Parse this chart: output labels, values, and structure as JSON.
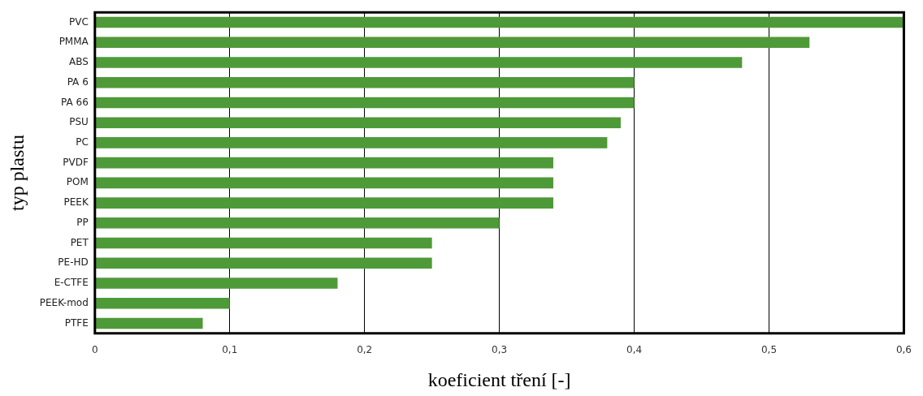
{
  "chart_data": {
    "type": "bar",
    "orientation": "horizontal",
    "xlabel": "koeficient tření [-]",
    "ylabel": "typ plastu",
    "categories": [
      "PVC",
      "PMMA",
      "ABS",
      "PA 6",
      "PA 66",
      "PSU",
      "PC",
      "PVDF",
      "POM",
      "PEEK",
      "PP",
      "PET",
      "PE-HD",
      "E-CTFE",
      "PEEK-mod",
      "PTFE"
    ],
    "values": [
      0.6,
      0.53,
      0.48,
      0.4,
      0.4,
      0.39,
      0.38,
      0.34,
      0.34,
      0.34,
      0.3,
      0.25,
      0.25,
      0.18,
      0.1,
      0.08
    ],
    "color": "#4f9a38",
    "xlim": [
      0,
      0.6
    ],
    "xticks": [
      0,
      {
        "value": 0.1,
        "label": "0,1"
      },
      {
        "value": 0.2,
        "label": "0,2"
      },
      {
        "value": 0.3,
        "label": "0,3"
      },
      {
        "value": 0.4,
        "label": "0,4"
      },
      {
        "value": 0.5,
        "label": "0,5"
      },
      {
        "value": 0.6,
        "label": "0,6"
      }
    ],
    "grid": "x",
    "legend": false
  }
}
